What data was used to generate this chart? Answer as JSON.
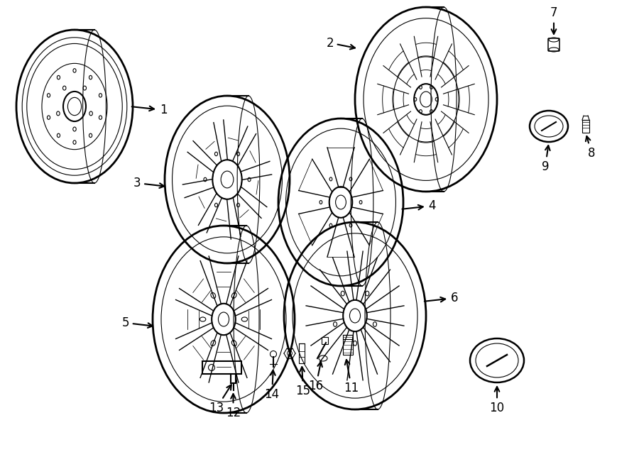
{
  "bg_color": "#ffffff",
  "line_color": "#000000",
  "lw_main": 1.5,
  "lw_thin": 0.8,
  "lw_thick": 2.0,
  "fig_width": 9.0,
  "fig_height": 6.61,
  "label_fontsize": 12
}
